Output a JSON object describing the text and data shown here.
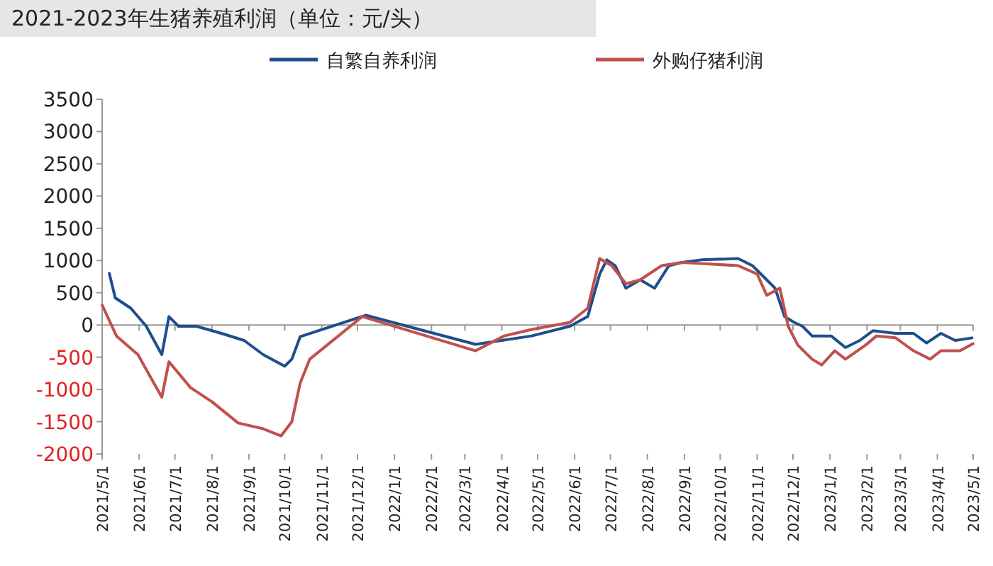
{
  "chart_data": {
    "type": "line",
    "title": "2021-2023年生猪养殖利润（单位：元/头）",
    "legend": "top",
    "marker": "none",
    "line_style": "solid",
    "xlim": [
      "2021-05-01",
      "2023-05-01"
    ],
    "xticks": [
      {
        "value": "2021-05-01",
        "label": "2021/5/1"
      },
      {
        "value": "2021-06-01",
        "label": "2021/6/1"
      },
      {
        "value": "2021-07-01",
        "label": "2021/7/1"
      },
      {
        "value": "2021-08-01",
        "label": "2021/8/1"
      },
      {
        "value": "2021-09-01",
        "label": "2021/9/1"
      },
      {
        "value": "2021-10-01",
        "label": "2021/10/1"
      },
      {
        "value": "2021-11-01",
        "label": "2021/11/1"
      },
      {
        "value": "2021-12-01",
        "label": "2021/12/1"
      },
      {
        "value": "2022-01-01",
        "label": "2022/1/1"
      },
      {
        "value": "2022-02-01",
        "label": "2022/2/1"
      },
      {
        "value": "2022-03-01",
        "label": "2022/3/1"
      },
      {
        "value": "2022-04-01",
        "label": "2022/4/1"
      },
      {
        "value": "2022-05-01",
        "label": "2022/5/1"
      },
      {
        "value": "2022-06-01",
        "label": "2022/6/1"
      },
      {
        "value": "2022-07-01",
        "label": "2022/7/1"
      },
      {
        "value": "2022-08-01",
        "label": "2022/8/1"
      },
      {
        "value": "2022-09-01",
        "label": "2022/9/1"
      },
      {
        "value": "2022-10-01",
        "label": "2022/10/1"
      },
      {
        "value": "2022-11-01",
        "label": "2022/11/1"
      },
      {
        "value": "2022-12-01",
        "label": "2022/12/1"
      },
      {
        "value": "2023-01-01",
        "label": "2023/1/1"
      },
      {
        "value": "2023-02-01",
        "label": "2023/2/1"
      },
      {
        "value": "2023-03-01",
        "label": "2023/3/1"
      },
      {
        "value": "2023-04-01",
        "label": "2023/4/1"
      },
      {
        "value": "2023-05-01",
        "label": "2023/5/1"
      }
    ],
    "ylim": [
      -2000,
      3500
    ],
    "yticks": [
      -2000,
      -1500,
      -1000,
      -500,
      0,
      500,
      1000,
      1500,
      2000,
      2500,
      3000,
      3500
    ],
    "series": [
      {
        "name": "自繁自养利润",
        "color": "#1f4e8c",
        "x": [
          "2021-05-07",
          "2021-05-12",
          "2021-05-25",
          "2021-06-07",
          "2021-06-20",
          "2021-06-26",
          "2021-07-04",
          "2021-07-19",
          "2021-08-09",
          "2021-08-28",
          "2021-09-13",
          "2021-10-01",
          "2021-10-07",
          "2021-10-14",
          "2021-12-08",
          "2022-03-10",
          "2022-04-26",
          "2022-05-28",
          "2022-06-12",
          "2022-06-22",
          "2022-06-28",
          "2022-07-05",
          "2022-07-14",
          "2022-07-26",
          "2022-08-07",
          "2022-08-19",
          "2022-08-30",
          "2022-09-15",
          "2022-10-16",
          "2022-10-28",
          "2022-11-09",
          "2022-11-16",
          "2022-11-24",
          "2022-12-02",
          "2022-12-09",
          "2022-12-17",
          "2023-01-02",
          "2023-01-14",
          "2023-01-26",
          "2023-02-06",
          "2023-02-25",
          "2023-03-12",
          "2023-03-23",
          "2023-04-04",
          "2023-04-16",
          "2023-04-30"
        ],
        "values": [
          800,
          420,
          260,
          -20,
          -460,
          130,
          -20,
          -20,
          -130,
          -240,
          -460,
          -640,
          -530,
          -180,
          150,
          -300,
          -170,
          -20,
          130,
          790,
          1010,
          920,
          570,
          700,
          570,
          920,
          970,
          1010,
          1030,
          920,
          700,
          570,
          130,
          40,
          -20,
          -170,
          -170,
          -350,
          -240,
          -90,
          -130,
          -130,
          -280,
          -130,
          -240,
          -200
        ]
      },
      {
        "name": "外购仔猪利润",
        "color": "#c0504d",
        "x": [
          "2021-05-01",
          "2021-05-13",
          "2021-05-31",
          "2021-06-20",
          "2021-06-26",
          "2021-07-14",
          "2021-08-01",
          "2021-08-23",
          "2021-09-13",
          "2021-09-28",
          "2021-10-07",
          "2021-10-14",
          "2021-10-22",
          "2021-12-05",
          "2022-03-10",
          "2022-04-03",
          "2022-04-26",
          "2022-05-28",
          "2022-06-12",
          "2022-06-22",
          "2022-07-02",
          "2022-07-14",
          "2022-07-26",
          "2022-08-13",
          "2022-08-30",
          "2022-10-16",
          "2022-11-01",
          "2022-11-09",
          "2022-11-20",
          "2022-11-27",
          "2022-12-05",
          "2022-12-17",
          "2022-12-25",
          "2023-01-05",
          "2023-01-14",
          "2023-01-31",
          "2023-02-09",
          "2023-02-25",
          "2023-03-12",
          "2023-03-26",
          "2023-04-04",
          "2023-04-20",
          "2023-05-01"
        ],
        "values": [
          310,
          -170,
          -460,
          -1120,
          -570,
          -970,
          -1190,
          -1520,
          -1610,
          -1720,
          -1500,
          -900,
          -530,
          130,
          -400,
          -170,
          -70,
          40,
          260,
          1030,
          920,
          640,
          700,
          920,
          970,
          920,
          790,
          460,
          570,
          -20,
          -310,
          -530,
          -620,
          -400,
          -530,
          -310,
          -170,
          -200,
          -400,
          -530,
          -400,
          -400,
          -290
        ]
      }
    ]
  }
}
